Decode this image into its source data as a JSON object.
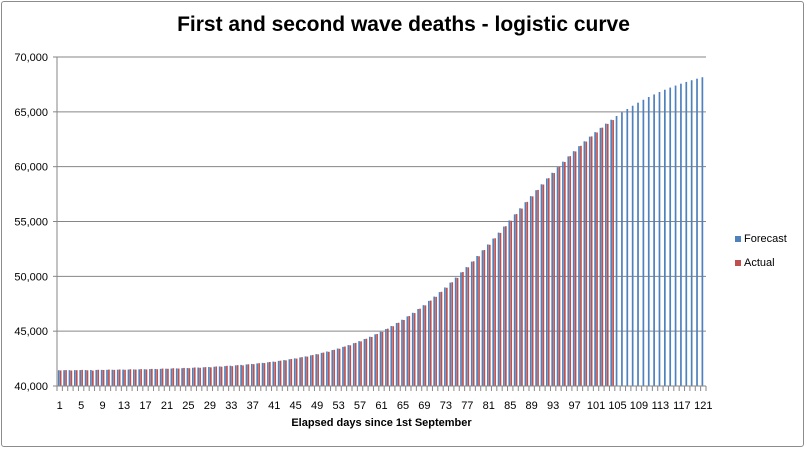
{
  "chart_data": {
    "type": "bar",
    "title": "First and second wave deaths - logistic curve",
    "xlabel": "Elapsed days since 1st September",
    "ylabel": "",
    "ylim": [
      40000,
      70000
    ],
    "yticks": [
      "40,000",
      "45,000",
      "50,000",
      "55,000",
      "60,000",
      "65,000",
      "70,000"
    ],
    "ytick_values": [
      40000,
      45000,
      50000,
      55000,
      60000,
      65000,
      70000
    ],
    "x_first": 1,
    "x_last": 121,
    "x_label_step": 4,
    "grid": "horizontal",
    "legend_position": "right",
    "series": [
      {
        "name": "Forecast",
        "color": "#4f81bd",
        "values": [
          41438,
          41441,
          41444,
          41447,
          41451,
          41455,
          41460,
          41465,
          41470,
          41476,
          41482,
          41488,
          41496,
          41503,
          41512,
          41521,
          41530,
          41541,
          41552,
          41565,
          41578,
          41592,
          41608,
          41624,
          41643,
          41662,
          41683,
          41706,
          41730,
          41757,
          41785,
          41816,
          41850,
          41886,
          41924,
          41966,
          42010,
          42058,
          42111,
          42166,
          42227,
          42292,
          42362,
          42438,
          42519,
          42605,
          42698,
          42798,
          42906,
          43021,
          43145,
          43277,
          43418,
          43571,
          43732,
          43904,
          44089,
          44285,
          44491,
          44714,
          44949,
          45200,
          45466,
          45745,
          46042,
          46348,
          46678,
          47021,
          47375,
          47762,
          48154,
          48561,
          48986,
          49428,
          49887,
          50362,
          50843,
          51344,
          51855,
          52374,
          52906,
          53445,
          53988,
          54540,
          55095,
          55650,
          56205,
          56760,
          57312,
          57855,
          58394,
          58926,
          59445,
          59956,
          60457,
          60938,
          61413,
          61872,
          62314,
          62739,
          63146,
          63538,
          63925,
          64279,
          64622,
          64952,
          65258,
          65555,
          65834,
          66100,
          66351,
          66586,
          66809,
          67015,
          67211,
          67396,
          67568,
          67729,
          67882,
          68023,
          68155
        ]
      },
      {
        "name": "Actual",
        "color": "#c0504d",
        "values": [
          41420,
          41450,
          41410,
          41440,
          41470,
          41430,
          41400,
          41480,
          41460,
          41500,
          41470,
          41510,
          41480,
          41530,
          41500,
          41540,
          41510,
          41560,
          41530,
          41590,
          41570,
          41620,
          41590,
          41650,
          41620,
          41690,
          41660,
          41720,
          41700,
          41780,
          41760,
          41840,
          41810,
          41900,
          41880,
          41980,
          41990,
          42080,
          42090,
          42190,
          42200,
          42310,
          42340,
          42460,
          42500,
          42630,
          42680,
          42820,
          42890,
          43050,
          43120,
          43300,
          43400,
          43600,
          43710,
          43930,
          44070,
          44310,
          44470,
          44740,
          44930,
          45230,
          45450,
          45770,
          46020,
          46380,
          46650,
          47050,
          47350,
          47790,
          48130,
          48590,
          48960,
          49460,
          49860,
          50390,
          50820,
          51370,
          51830,
          52400,
          52880,
          53470,
          53960,
          54570,
          55070,
          55680,
          56180,
          56790,
          57290,
          57880,
          58370,
          58950,
          59420,
          59980,
          60430,
          60960,
          61390,
          61900,
          62290,
          62760,
          63120,
          63560,
          63900,
          64250
        ]
      }
    ]
  }
}
